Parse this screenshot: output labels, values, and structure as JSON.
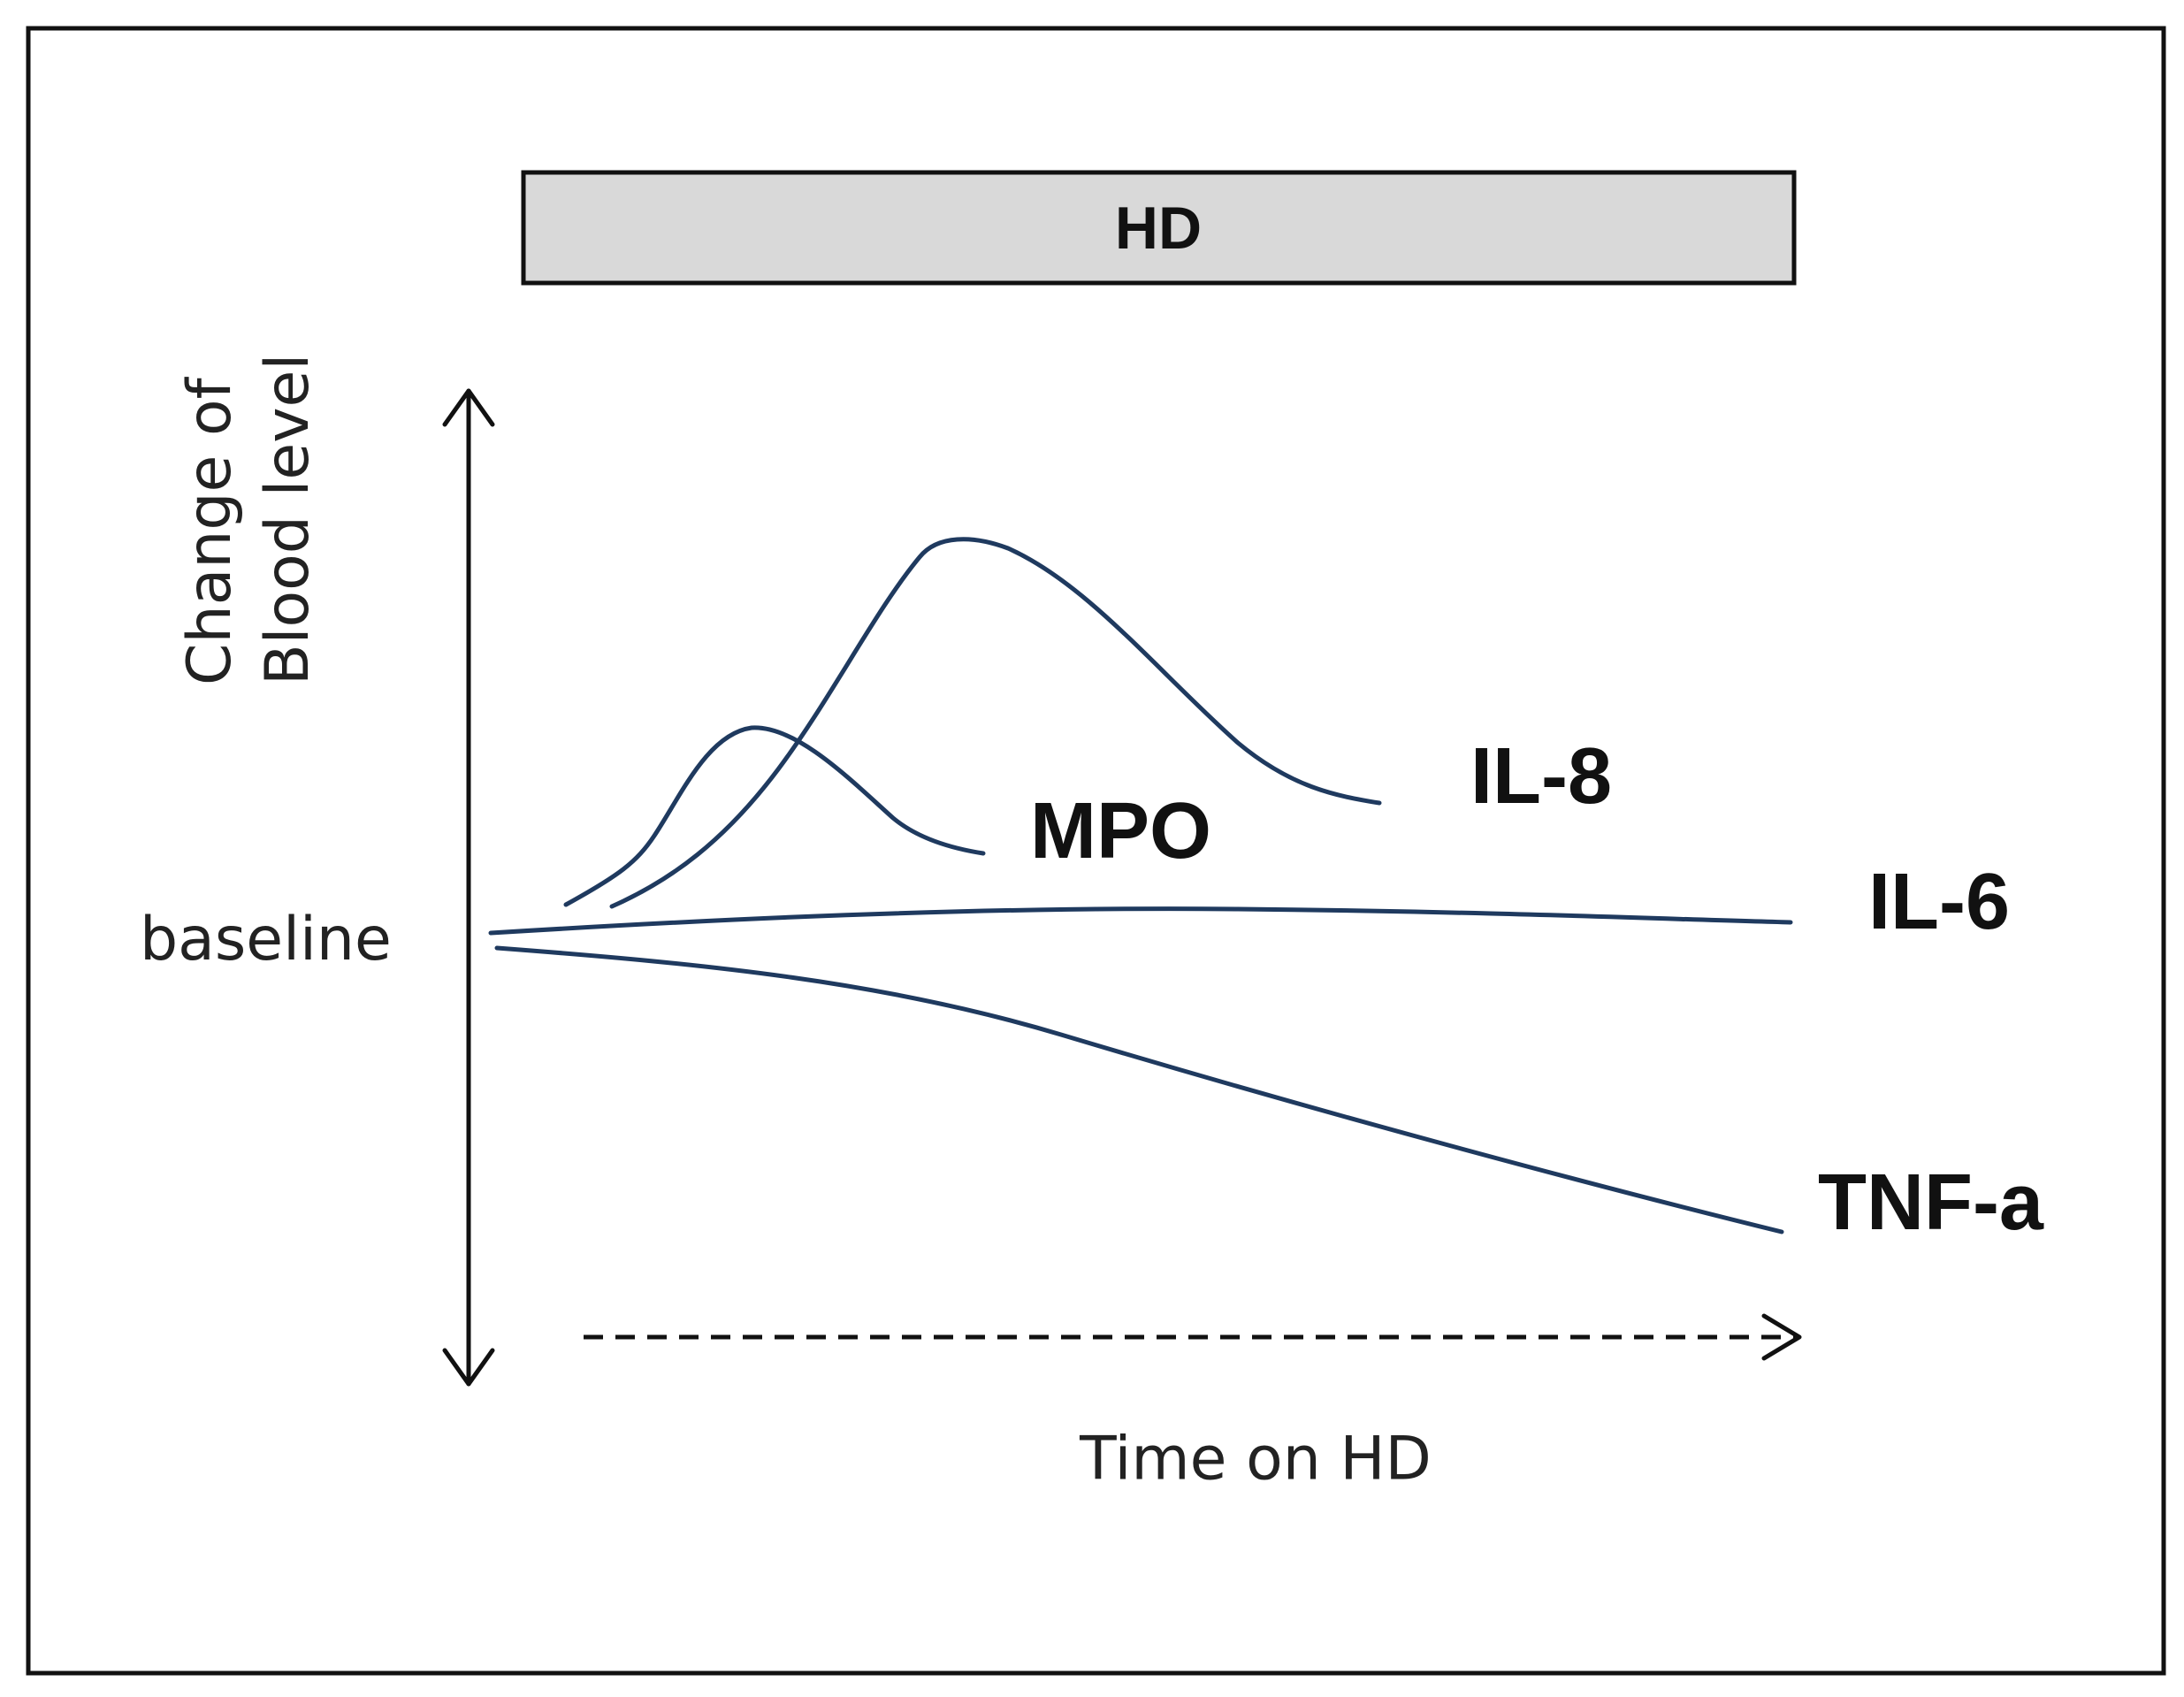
{
  "header_bar": {
    "label": "HD"
  },
  "axes": {
    "y_label_line1": "Change of",
    "y_label_line2": "Blood level",
    "baseline_label": "baseline",
    "x_label": "Time on HD"
  },
  "series": {
    "mpo": {
      "label": "MPO"
    },
    "il8": {
      "label": "IL-8"
    },
    "il6": {
      "label": "IL-6"
    },
    "tnf": {
      "label": "TNF-a"
    }
  },
  "colors": {
    "curve": "#1f3a5f"
  }
}
